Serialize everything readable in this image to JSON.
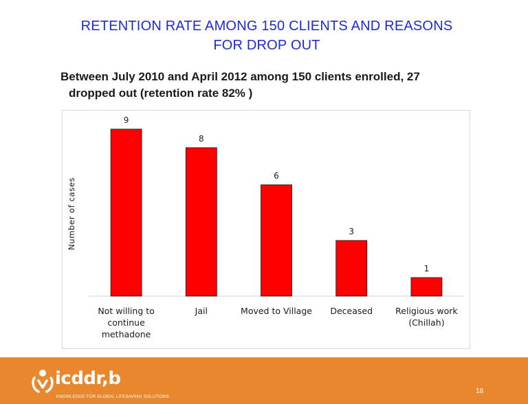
{
  "slide": {
    "title_line1": "RETENTION RATE AMONG 150 CLIENTS AND REASONS",
    "title_line2": "FOR DROP OUT",
    "subtitle_line1": "Between July 2010 and April 2012 among 150 clients enrolled, 27",
    "subtitle_line2": "dropped out (retention rate 82% )",
    "page_number": "18"
  },
  "footer": {
    "logo_text": "icddr,b",
    "tagline": "KNOWLEDGE FOR GLOBAL LIFESAVING SOLUTIONS",
    "background_color": "#e8882e"
  },
  "chart_data": {
    "type": "bar",
    "title": "",
    "xlabel": "",
    "ylabel": "Number of cases",
    "categories": [
      [
        "Not willing to",
        "continue",
        "methadone"
      ],
      [
        "Jail"
      ],
      [
        "Moved to Village"
      ],
      [
        "Deceased"
      ],
      [
        "Religious work",
        "(Chillah)"
      ]
    ],
    "values": [
      9,
      8,
      6,
      3,
      1
    ],
    "value_labels": [
      "9",
      "8",
      "6",
      "3",
      "1"
    ],
    "ylim": [
      0,
      9.7
    ],
    "bar_color": "#ff0000",
    "grid": false
  }
}
